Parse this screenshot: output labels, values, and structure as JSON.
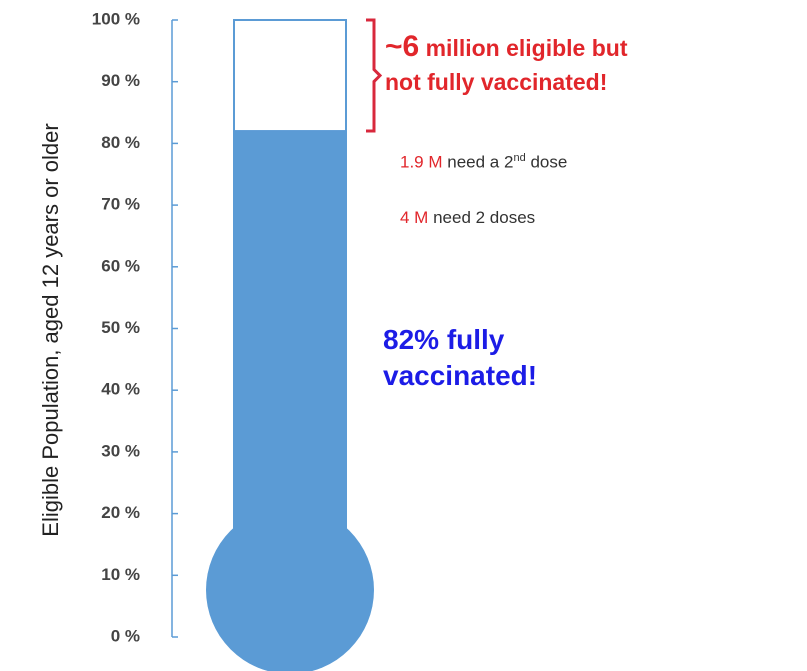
{
  "chart_data": {
    "type": "thermometer",
    "y_label": "Eligible Population, aged 12 years or older",
    "values": [
      82
    ],
    "value_labels": [
      "82% fully vaccinated!"
    ],
    "color": "#5b9bd5",
    "ylim": [
      0,
      100
    ],
    "yticks": [
      {
        "value": 0,
        "label": "0 %"
      },
      {
        "value": 10,
        "label": "10 %"
      },
      {
        "value": 20,
        "label": "20 %"
      },
      {
        "value": 30,
        "label": "30 %"
      },
      {
        "value": 40,
        "label": "40 %"
      },
      {
        "value": 50,
        "label": "50 %"
      },
      {
        "value": 60,
        "label": "60 %"
      },
      {
        "value": 70,
        "label": "70 %"
      },
      {
        "value": 80,
        "label": "80 %"
      },
      {
        "value": 90,
        "label": "90 %"
      },
      {
        "value": 100,
        "label": "100 %"
      }
    ],
    "annotations": {
      "gap": {
        "tilde": "~",
        "number": "6",
        "line1": "million eligible but",
        "line2": "not fully vaccinated!"
      },
      "breakdown": [
        {
          "amount": "1.9 M",
          "text": "need a 2",
          "sup": "nd",
          "tail": "dose"
        },
        {
          "amount": "4 M",
          "text": "need 2 doses"
        }
      ]
    }
  }
}
